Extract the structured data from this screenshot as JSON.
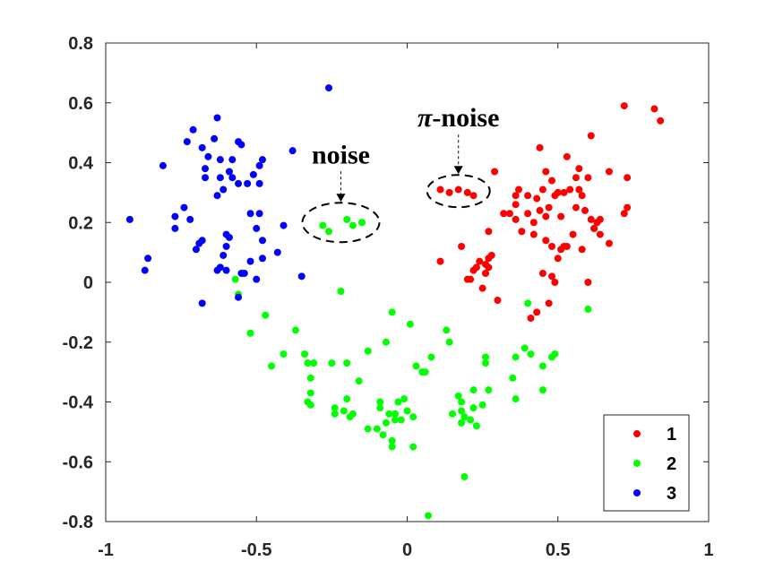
{
  "chart_data": {
    "type": "scatter",
    "xlim": [
      -1,
      1
    ],
    "ylim": [
      -0.8,
      0.8
    ],
    "x_ticks": [
      "-1",
      "-0.5",
      "0",
      "0.5",
      "1"
    ],
    "y_ticks": [
      "0.8",
      "0.6",
      "0.4",
      "0.2",
      "0",
      "-0.2",
      "-0.4",
      "-0.6",
      "-0.8"
    ],
    "legend_position": "bottom-right",
    "series": [
      {
        "name": "1",
        "color": "#ff0000",
        "points": [
          [
            0.72,
            0.59
          ],
          [
            0.82,
            0.58
          ],
          [
            0.84,
            0.54
          ],
          [
            0.61,
            0.49
          ],
          [
            0.44,
            0.45
          ],
          [
            0.53,
            0.42
          ],
          [
            0.57,
            0.38
          ],
          [
            0.46,
            0.37
          ],
          [
            0.6,
            0.35
          ],
          [
            0.67,
            0.37
          ],
          [
            0.73,
            0.35
          ],
          [
            0.48,
            0.34
          ],
          [
            0.29,
            0.37
          ],
          [
            0.49,
            0.29
          ],
          [
            0.5,
            0.3
          ],
          [
            0.54,
            0.31
          ],
          [
            0.52,
            0.3
          ],
          [
            0.57,
            0.31
          ],
          [
            0.58,
            0.29
          ],
          [
            0.45,
            0.31
          ],
          [
            0.43,
            0.28
          ],
          [
            0.37,
            0.31
          ],
          [
            0.36,
            0.29
          ],
          [
            0.4,
            0.29
          ],
          [
            0.36,
            0.26
          ],
          [
            0.4,
            0.23
          ],
          [
            0.42,
            0.2
          ],
          [
            0.46,
            0.22
          ],
          [
            0.47,
            0.25
          ],
          [
            0.44,
            0.24
          ],
          [
            0.51,
            0.22
          ],
          [
            0.56,
            0.25
          ],
          [
            0.59,
            0.24
          ],
          [
            0.63,
            0.2
          ],
          [
            0.62,
            0.18
          ],
          [
            0.64,
            0.21
          ],
          [
            0.72,
            0.23
          ],
          [
            0.73,
            0.25
          ],
          [
            0.42,
            0.16
          ],
          [
            0.46,
            0.14
          ],
          [
            0.48,
            0.12
          ],
          [
            0.62,
            0.18
          ],
          [
            0.64,
            0.16
          ],
          [
            0.67,
            0.13
          ],
          [
            0.55,
            0.16
          ],
          [
            0.52,
            0.12
          ],
          [
            0.58,
            0.11
          ],
          [
            0.34,
            0.23
          ],
          [
            0.36,
            0.21
          ],
          [
            0.32,
            0.23
          ],
          [
            0.38,
            0.17
          ],
          [
            0.27,
            0.17
          ],
          [
            0.28,
            0.09
          ],
          [
            0.26,
            0.06
          ],
          [
            0.27,
            0.08
          ],
          [
            0.24,
            0.07
          ],
          [
            0.23,
            0.05
          ],
          [
            0.22,
            0.04
          ],
          [
            0.26,
            0.03
          ],
          [
            0.21,
            0.01
          ],
          [
            0.18,
            0.12
          ],
          [
            0.11,
            0.07
          ],
          [
            0.2,
            0.01
          ],
          [
            0.25,
            -0.02
          ],
          [
            0.27,
            0.05
          ],
          [
            0.3,
            -0.06
          ],
          [
            0.43,
            -0.1
          ],
          [
            0.41,
            -0.12
          ],
          [
            0.47,
            -0.07
          ],
          [
            0.49,
            0.0
          ],
          [
            0.45,
            0.03
          ],
          [
            0.48,
            0.02
          ],
          [
            0.53,
            0.12
          ],
          [
            0.5,
            0.08
          ],
          [
            0.51,
            0.11
          ],
          [
            0.6,
            0.0
          ],
          [
            0.61,
            0.21
          ],
          [
            0.56,
            0.35
          ],
          [
            0.11,
            0.31
          ],
          [
            0.14,
            0.3
          ],
          [
            0.17,
            0.31
          ],
          [
            0.2,
            0.3
          ],
          [
            0.22,
            0.29
          ]
        ]
      },
      {
        "name": "2",
        "color": "#00ff00",
        "points": [
          [
            -0.28,
            0.19
          ],
          [
            -0.26,
            0.17
          ],
          [
            -0.2,
            0.21
          ],
          [
            -0.18,
            0.19
          ],
          [
            -0.15,
            0.2
          ],
          [
            -0.22,
            -0.03
          ],
          [
            -0.52,
            -0.17
          ],
          [
            -0.47,
            -0.11
          ],
          [
            -0.45,
            -0.28
          ],
          [
            -0.41,
            -0.24
          ],
          [
            -0.37,
            -0.16
          ],
          [
            -0.34,
            -0.24
          ],
          [
            -0.33,
            -0.27
          ],
          [
            -0.31,
            -0.27
          ],
          [
            -0.32,
            -0.32
          ],
          [
            -0.32,
            -0.37
          ],
          [
            -0.33,
            -0.4
          ],
          [
            -0.32,
            -0.41
          ],
          [
            -0.25,
            -0.27
          ],
          [
            -0.2,
            -0.27
          ],
          [
            -0.13,
            -0.23
          ],
          [
            -0.16,
            -0.33
          ],
          [
            -0.2,
            -0.39
          ],
          [
            -0.21,
            -0.43
          ],
          [
            -0.24,
            -0.42
          ],
          [
            -0.24,
            -0.44
          ],
          [
            -0.19,
            -0.45
          ],
          [
            -0.18,
            -0.44
          ],
          [
            -0.09,
            -0.4
          ],
          [
            -0.09,
            -0.42
          ],
          [
            -0.06,
            -0.44
          ],
          [
            -0.04,
            -0.44
          ],
          [
            -0.03,
            -0.4
          ],
          [
            -0.01,
            -0.39
          ],
          [
            0.0,
            -0.43
          ],
          [
            -0.02,
            -0.46
          ],
          [
            -0.04,
            -0.46
          ],
          [
            -0.07,
            -0.47
          ],
          [
            -0.08,
            -0.51
          ],
          [
            -0.05,
            -0.53
          ],
          [
            -0.05,
            -0.55
          ],
          [
            -0.1,
            -0.49
          ],
          [
            -0.13,
            -0.49
          ],
          [
            0.02,
            -0.45
          ],
          [
            0.02,
            -0.55
          ],
          [
            -0.07,
            -0.2
          ],
          [
            -0.05,
            -0.1
          ],
          [
            0.01,
            -0.14
          ],
          [
            0.03,
            -0.28
          ],
          [
            0.05,
            -0.3
          ],
          [
            0.06,
            -0.3
          ],
          [
            0.08,
            -0.25
          ],
          [
            0.13,
            -0.16
          ],
          [
            0.14,
            -0.2
          ],
          [
            0.15,
            -0.44
          ],
          [
            0.17,
            -0.38
          ],
          [
            0.18,
            -0.4
          ],
          [
            0.18,
            -0.43
          ],
          [
            0.19,
            -0.45
          ],
          [
            0.18,
            -0.47
          ],
          [
            0.21,
            -0.46
          ],
          [
            0.22,
            -0.42
          ],
          [
            0.22,
            -0.36
          ],
          [
            0.23,
            -0.48
          ],
          [
            0.25,
            -0.41
          ],
          [
            0.27,
            -0.36
          ],
          [
            0.26,
            -0.27
          ],
          [
            0.26,
            -0.25
          ],
          [
            0.35,
            -0.32
          ],
          [
            0.36,
            -0.39
          ],
          [
            0.36,
            -0.25
          ],
          [
            0.39,
            -0.22
          ],
          [
            0.41,
            -0.24
          ],
          [
            0.45,
            -0.36
          ],
          [
            0.45,
            -0.28
          ],
          [
            0.48,
            -0.25
          ],
          [
            0.49,
            -0.24
          ],
          [
            0.4,
            -0.07
          ],
          [
            0.6,
            -0.09
          ],
          [
            0.19,
            -0.65
          ],
          [
            0.07,
            -0.78
          ],
          [
            -0.57,
            0.01
          ],
          [
            -0.56,
            -0.04
          ]
        ]
      },
      {
        "name": "3",
        "color": "#0000ff",
        "points": [
          [
            -0.26,
            0.65
          ],
          [
            -0.63,
            0.55
          ],
          [
            -0.71,
            0.51
          ],
          [
            -0.73,
            0.47
          ],
          [
            -0.64,
            0.48
          ],
          [
            -0.56,
            0.47
          ],
          [
            -0.55,
            0.46
          ],
          [
            -0.68,
            0.45
          ],
          [
            -0.66,
            0.42
          ],
          [
            -0.62,
            0.41
          ],
          [
            -0.58,
            0.41
          ],
          [
            -0.59,
            0.37
          ],
          [
            -0.51,
            0.36
          ],
          [
            -0.49,
            0.39
          ],
          [
            -0.48,
            0.41
          ],
          [
            -0.38,
            0.44
          ],
          [
            -0.81,
            0.39
          ],
          [
            -0.67,
            0.38
          ],
          [
            -0.67,
            0.35
          ],
          [
            -0.62,
            0.35
          ],
          [
            -0.58,
            0.35
          ],
          [
            -0.56,
            0.33
          ],
          [
            -0.61,
            0.31
          ],
          [
            -0.63,
            0.29
          ],
          [
            -0.53,
            0.33
          ],
          [
            -0.49,
            0.33
          ],
          [
            -0.92,
            0.21
          ],
          [
            -0.77,
            0.22
          ],
          [
            -0.74,
            0.25
          ],
          [
            -0.72,
            0.21
          ],
          [
            -0.77,
            0.18
          ],
          [
            -0.68,
            0.14
          ],
          [
            -0.69,
            0.13
          ],
          [
            -0.7,
            0.11
          ],
          [
            -0.6,
            0.16
          ],
          [
            -0.59,
            0.15
          ],
          [
            -0.6,
            0.12
          ],
          [
            -0.52,
            0.23
          ],
          [
            -0.49,
            0.23
          ],
          [
            -0.5,
            0.18
          ],
          [
            -0.48,
            0.14
          ],
          [
            -0.41,
            0.19
          ],
          [
            -0.43,
            0.1
          ],
          [
            -0.48,
            0.08
          ],
          [
            -0.52,
            0.07
          ],
          [
            -0.54,
            0.03
          ],
          [
            -0.61,
            0.09
          ],
          [
            -0.62,
            0.05
          ],
          [
            -0.63,
            0.04
          ],
          [
            -0.6,
            0.04
          ],
          [
            -0.55,
            0.03
          ],
          [
            -0.5,
            0.01
          ],
          [
            -0.86,
            0.08
          ],
          [
            -0.87,
            0.04
          ],
          [
            -0.68,
            -0.07
          ],
          [
            -0.56,
            -0.05
          ],
          [
            -0.35,
            0.02
          ]
        ]
      }
    ],
    "annotations": [
      {
        "text": "noise",
        "target": [
          -0.22,
          0.2
        ]
      },
      {
        "text": "π-noise",
        "target": [
          0.17,
          0.305
        ]
      }
    ]
  }
}
